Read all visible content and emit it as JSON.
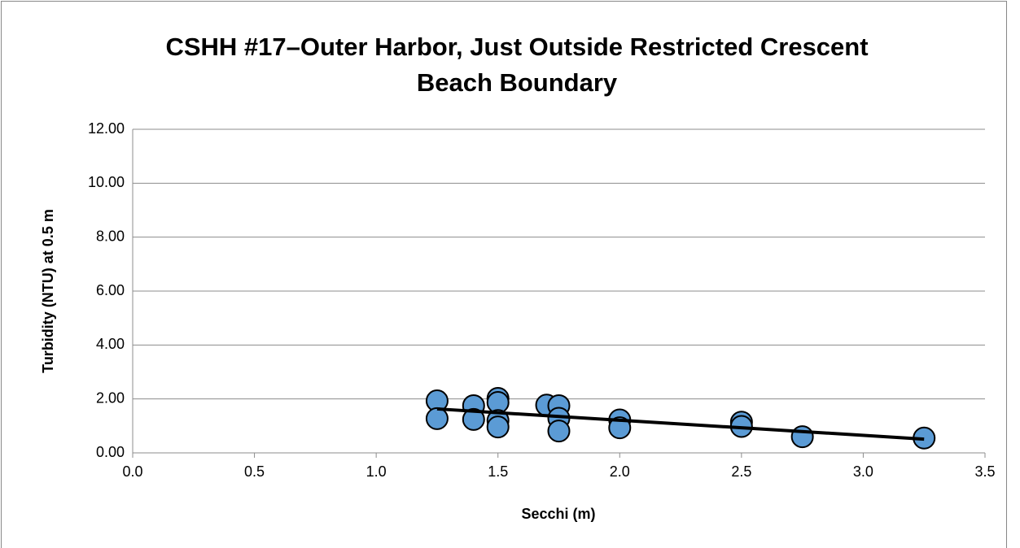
{
  "chart_data": {
    "type": "scatter",
    "title": "CSHH #17–Outer Harbor, Just Outside Restricted Crescent Beach Boundary",
    "x_label": "Secchi (m)",
    "y_label": "Turbidity (NTU) at 0.5 m",
    "series": [
      {
        "name": "Turbidity",
        "color": "#5b9bd5",
        "x": [
          1.25,
          1.25,
          1.4,
          1.4,
          1.5,
          1.5,
          1.5,
          1.5,
          1.7,
          1.75,
          1.75,
          1.75,
          2.0,
          2.0,
          2.5,
          2.5,
          2.75,
          3.25
        ],
        "values": [
          1.93,
          1.27,
          1.75,
          1.24,
          2.02,
          1.87,
          1.2,
          0.96,
          1.77,
          1.75,
          1.28,
          0.81,
          1.22,
          0.93,
          1.14,
          0.98,
          0.6,
          0.55
        ]
      }
    ],
    "trendline": {
      "color": "#000000",
      "x": [
        1.25,
        3.25
      ],
      "values": [
        1.63,
        0.51
      ]
    },
    "xlim": [
      0,
      3.5
    ],
    "xticks": [
      {
        "value": 0,
        "label": "0.0"
      },
      0.5,
      {
        "value": 1,
        "label": "1.0"
      },
      1.5,
      {
        "value": 2,
        "label": "2.0"
      },
      2.5,
      {
        "value": 3,
        "label": "3.0"
      },
      3.5
    ],
    "ylim": [
      0,
      12
    ],
    "yticks": [
      {
        "value": 0,
        "label": "0.00"
      },
      {
        "value": 2,
        "label": "2.00"
      },
      {
        "value": 4,
        "label": "4.00"
      },
      {
        "value": 6,
        "label": "6.00"
      },
      {
        "value": 8,
        "label": "8.00"
      },
      {
        "value": 10,
        "label": "10.00"
      },
      {
        "value": 12,
        "label": "12.00"
      }
    ],
    "grid": true
  }
}
